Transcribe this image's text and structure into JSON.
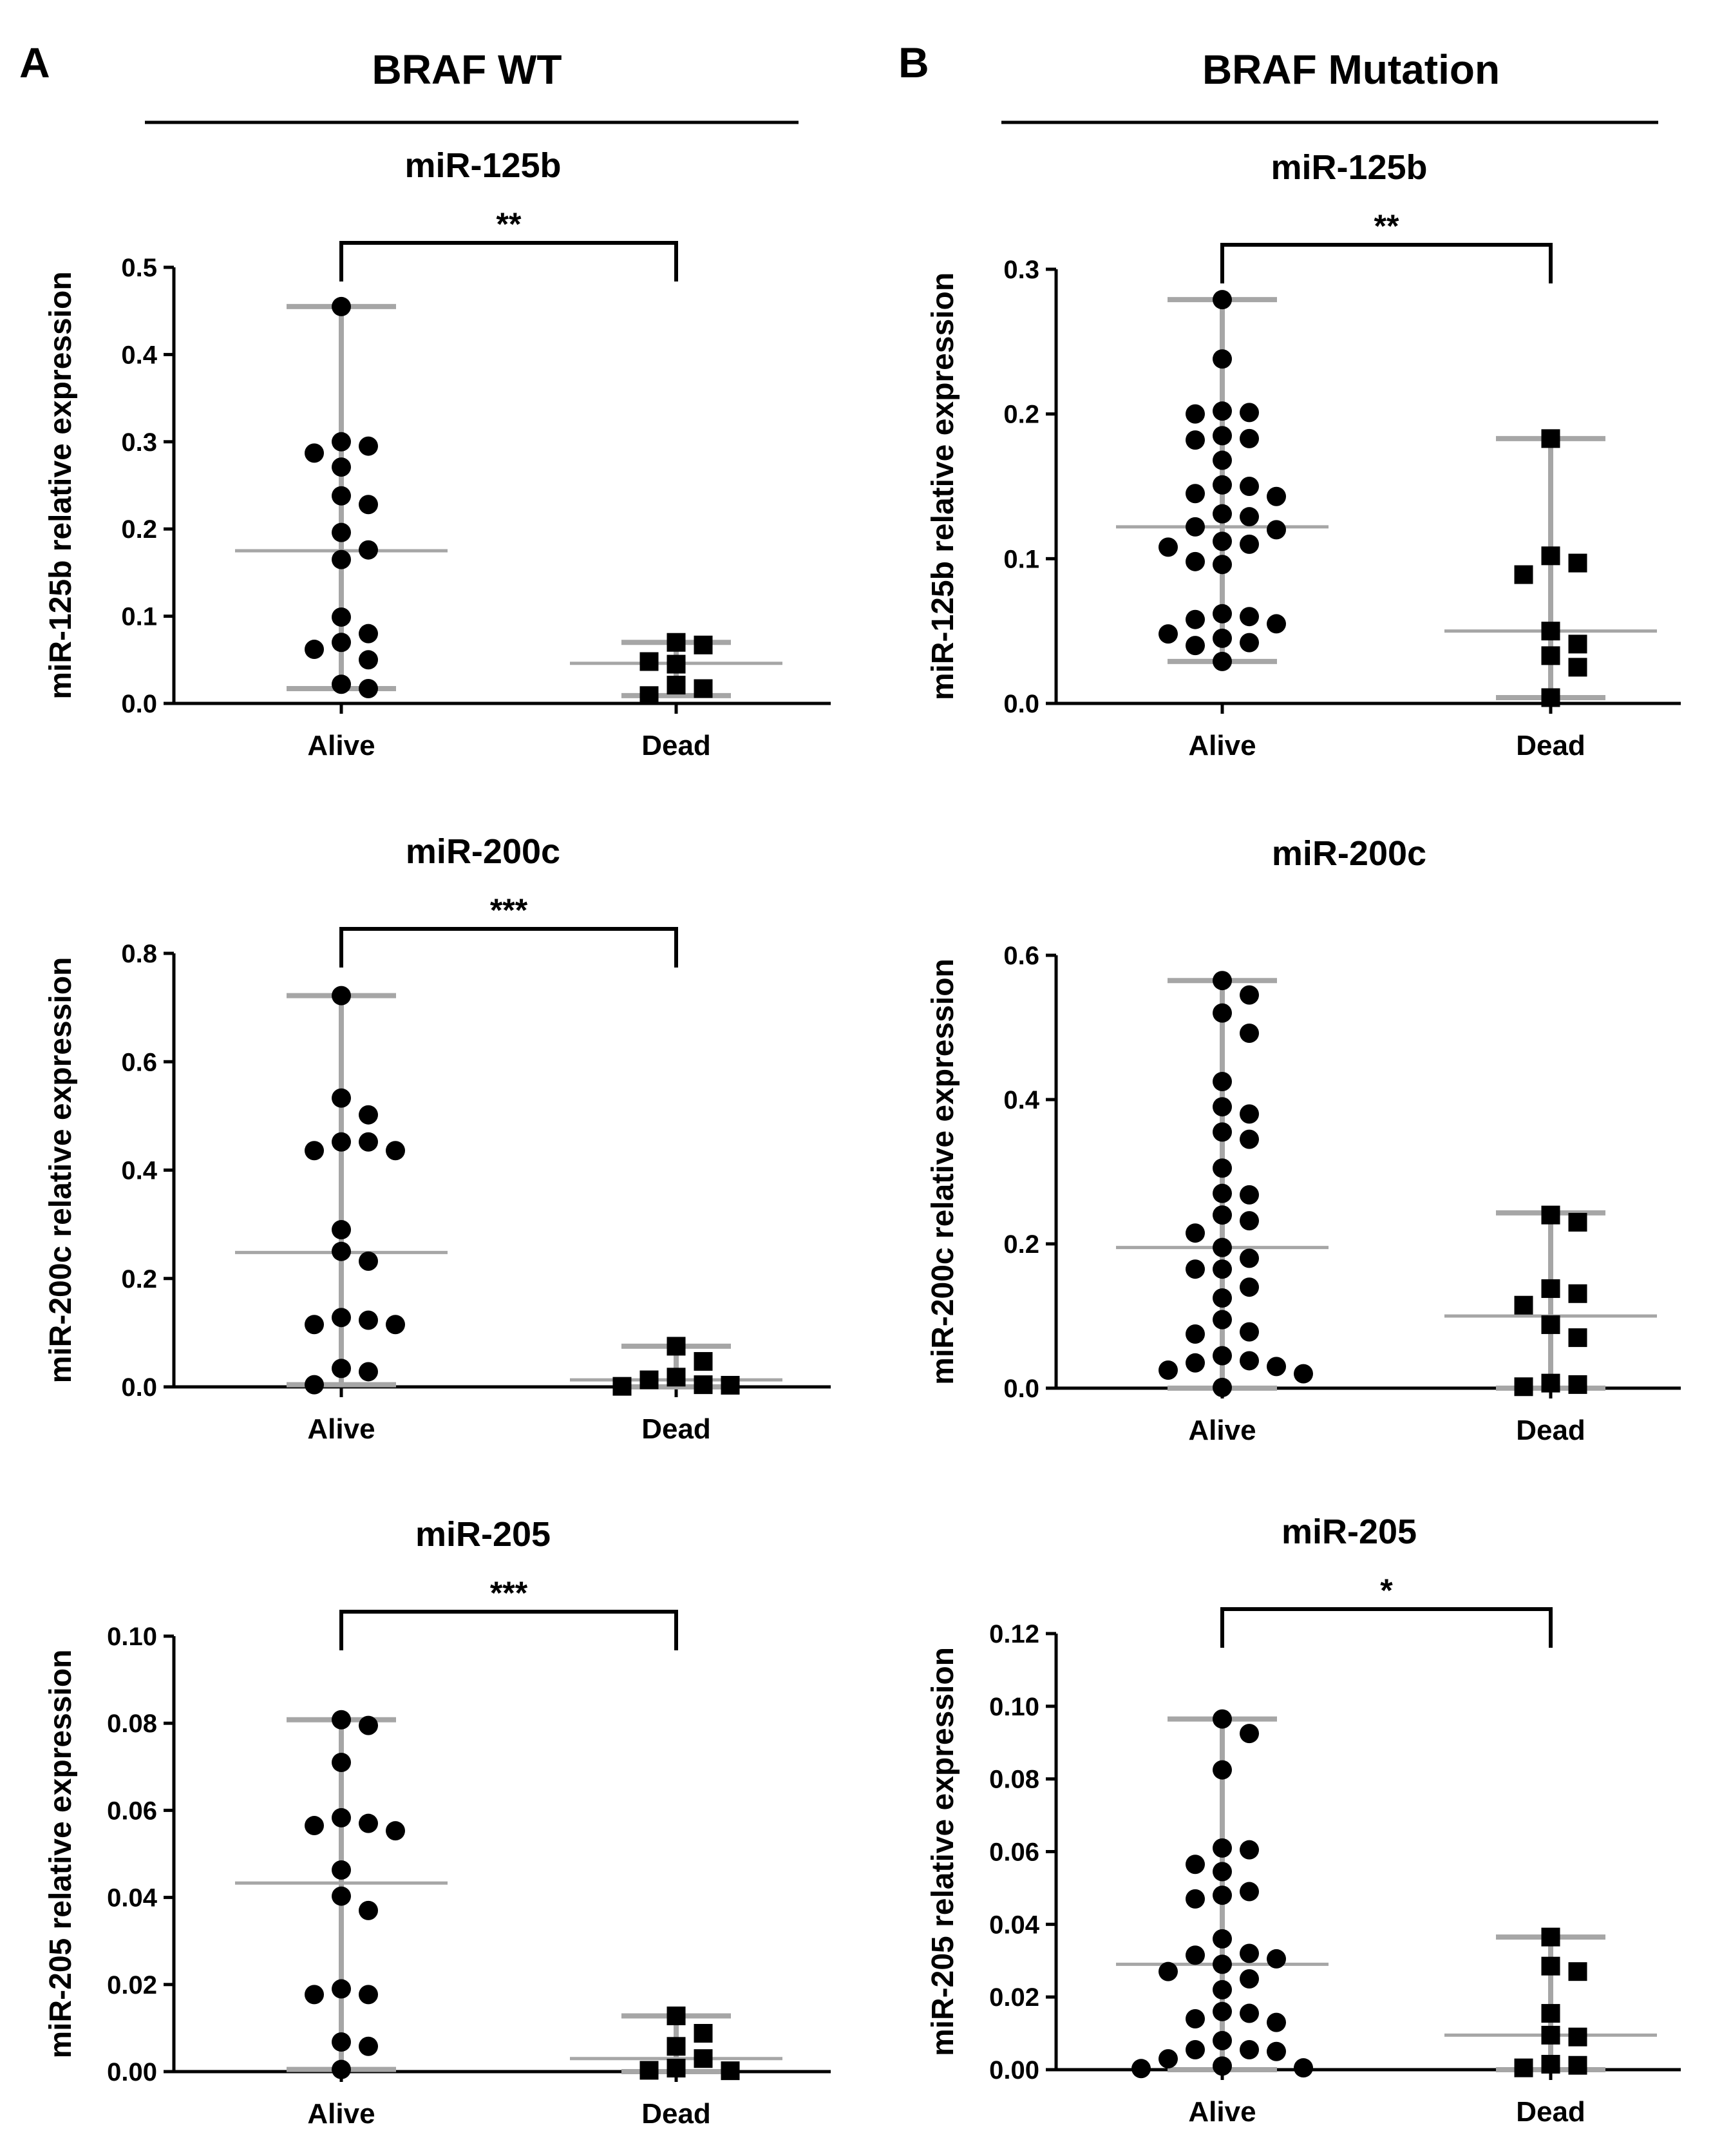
{
  "panels": [
    {
      "letter": "A",
      "title": "BRAF WT"
    },
    {
      "letter": "B",
      "title": "BRAF Mutation"
    }
  ],
  "colors": {
    "axis": "#000000",
    "whisker": "#a6a6a6",
    "point": "#000000",
    "background": "#ffffff"
  },
  "chart_data": [
    {
      "type": "scatter",
      "panel": "A",
      "title": "miR-125b",
      "ylabel": "miR-125b relative expression",
      "categories": [
        "Alive",
        "Dead"
      ],
      "ylim": [
        0,
        0.5
      ],
      "ticks": [
        "0.0",
        "0.1",
        "0.2",
        "0.3",
        "0.4",
        "0.5"
      ],
      "tick_values": [
        0,
        0.1,
        0.2,
        0.3,
        0.4,
        0.5
      ],
      "groups": [
        {
          "name": "Alive",
          "marker": "circle",
          "median": 0.175,
          "range": [
            0.017,
            0.455
          ],
          "values": [
            0.455,
            0.3,
            0.295,
            0.287,
            0.271,
            0.238,
            0.228,
            0.196,
            0.176,
            0.165,
            0.099,
            0.08,
            0.07,
            0.062,
            0.05,
            0.022,
            0.017
          ]
        },
        {
          "name": "Dead",
          "marker": "square",
          "median": 0.046,
          "range": [
            0.009,
            0.07
          ],
          "values": [
            0.07,
            0.067,
            0.048,
            0.045,
            0.021,
            0.017,
            0.009
          ]
        }
      ],
      "significance": "**"
    },
    {
      "type": "scatter",
      "panel": "A",
      "title": "miR-200c",
      "ylabel": "miR-200c relative expression",
      "categories": [
        "Alive",
        "Dead"
      ],
      "ylim": [
        0,
        0.8
      ],
      "ticks": [
        "0.0",
        "0.2",
        "0.4",
        "0.6",
        "0.8"
      ],
      "tick_values": [
        0,
        0.2,
        0.4,
        0.6,
        0.8
      ],
      "groups": [
        {
          "name": "Alive",
          "marker": "circle",
          "median": 0.248,
          "range": [
            0.004,
            0.722
          ],
          "values": [
            0.722,
            0.533,
            0.502,
            0.452,
            0.452,
            0.436,
            0.436,
            0.29,
            0.25,
            0.232,
            0.128,
            0.123,
            0.115,
            0.115,
            0.034,
            0.028,
            0.004
          ]
        },
        {
          "name": "Dead",
          "marker": "square",
          "median": 0.013,
          "range": [
            0.0,
            0.075
          ],
          "values": [
            0.075,
            0.047,
            0.018,
            0.013,
            0.004,
            0.003,
            0.001
          ]
        }
      ],
      "significance": "***"
    },
    {
      "type": "scatter",
      "panel": "A",
      "title": "miR-205",
      "ylabel": "miR-205 relative expression",
      "categories": [
        "Alive",
        "Dead"
      ],
      "ylim": [
        0,
        0.1
      ],
      "ticks": [
        "0.00",
        "0.02",
        "0.04",
        "0.06",
        "0.08",
        "0.10"
      ],
      "tick_values": [
        0,
        0.02,
        0.04,
        0.06,
        0.08,
        0.1
      ],
      "groups": [
        {
          "name": "Alive",
          "marker": "circle",
          "median": 0.0433,
          "range": [
            0.0005,
            0.0808
          ],
          "values": [
            0.0808,
            0.0795,
            0.071,
            0.0583,
            0.057,
            0.0565,
            0.0553,
            0.0463,
            0.0403,
            0.037,
            0.019,
            0.0177,
            0.0177,
            0.0068,
            0.0058,
            0.0005
          ]
        },
        {
          "name": "Dead",
          "marker": "square",
          "median": 0.003,
          "range": [
            0.0,
            0.0128
          ],
          "values": [
            0.0128,
            0.0088,
            0.0058,
            0.003,
            0.0008,
            0.0003,
            0.0002
          ]
        }
      ],
      "significance": "***"
    },
    {
      "type": "scatter",
      "panel": "B",
      "title": "miR-125b",
      "ylabel": "miR-125b relative expression",
      "categories": [
        "Alive",
        "Dead"
      ],
      "ylim": [
        0,
        0.3
      ],
      "ticks": [
        "0.0",
        "0.1",
        "0.2",
        "0.3"
      ],
      "tick_values": [
        0,
        0.1,
        0.2,
        0.3
      ],
      "groups": [
        {
          "name": "Alive",
          "marker": "circle",
          "median": 0.122,
          "range": [
            0.029,
            0.279
          ],
          "values": [
            0.279,
            0.238,
            0.202,
            0.201,
            0.2,
            0.185,
            0.183,
            0.182,
            0.168,
            0.151,
            0.15,
            0.145,
            0.143,
            0.131,
            0.129,
            0.122,
            0.12,
            0.112,
            0.11,
            0.108,
            0.098,
            0.096,
            0.062,
            0.06,
            0.058,
            0.055,
            0.048,
            0.045,
            0.042,
            0.04,
            0.029
          ]
        },
        {
          "name": "Dead",
          "marker": "square",
          "median": 0.05,
          "range": [
            0.004,
            0.183
          ],
          "values": [
            0.183,
            0.102,
            0.097,
            0.089,
            0.05,
            0.041,
            0.033,
            0.025,
            0.004
          ]
        }
      ],
      "significance": "**"
    },
    {
      "type": "scatter",
      "panel": "B",
      "title": "miR-200c",
      "ylabel": "miR-200c relative expression",
      "categories": [
        "Alive",
        "Dead"
      ],
      "ylim": [
        0,
        0.6
      ],
      "ticks": [
        "0.0",
        "0.2",
        "0.4",
        "0.6"
      ],
      "tick_values": [
        0,
        0.2,
        0.4,
        0.6
      ],
      "groups": [
        {
          "name": "Alive",
          "marker": "circle",
          "median": 0.195,
          "range": [
            0.0,
            0.565
          ],
          "values": [
            0.565,
            0.545,
            0.52,
            0.492,
            0.425,
            0.39,
            0.38,
            0.355,
            0.345,
            0.305,
            0.27,
            0.268,
            0.24,
            0.232,
            0.215,
            0.195,
            0.18,
            0.165,
            0.165,
            0.14,
            0.125,
            0.095,
            0.078,
            0.075,
            0.045,
            0.038,
            0.035,
            0.03,
            0.025,
            0.02,
            0.001
          ]
        },
        {
          "name": "Dead",
          "marker": "square",
          "median": 0.1,
          "range": [
            0.0,
            0.243
          ],
          "values": [
            0.24,
            0.23,
            0.138,
            0.131,
            0.115,
            0.088,
            0.07,
            0.007,
            0.005,
            0.002
          ]
        }
      ],
      "significance": ""
    },
    {
      "type": "scatter",
      "panel": "B",
      "title": "miR-205",
      "ylabel": "miR-205 relative expression",
      "categories": [
        "Alive",
        "Dead"
      ],
      "ylim": [
        0,
        0.12
      ],
      "ticks": [
        "0.00",
        "0.02",
        "0.04",
        "0.06",
        "0.08",
        "0.10",
        "0.12"
      ],
      "tick_values": [
        0,
        0.02,
        0.04,
        0.06,
        0.08,
        0.1,
        0.12
      ],
      "groups": [
        {
          "name": "Alive",
          "marker": "circle",
          "median": 0.029,
          "range": [
            0.0,
            0.0965
          ],
          "values": [
            0.0965,
            0.0925,
            0.0825,
            0.061,
            0.0605,
            0.0565,
            0.0545,
            0.049,
            0.048,
            0.047,
            0.036,
            0.032,
            0.0315,
            0.0305,
            0.029,
            0.027,
            0.025,
            0.022,
            0.016,
            0.0155,
            0.014,
            0.013,
            0.008,
            0.0055,
            0.0055,
            0.005,
            0.003,
            0.001,
            0.0005,
            0.0003
          ]
        },
        {
          "name": "Dead",
          "marker": "square",
          "median": 0.0095,
          "range": [
            0.0,
            0.0365
          ],
          "values": [
            0.0365,
            0.0285,
            0.027,
            0.0155,
            0.0095,
            0.009,
            0.0015,
            0.0012,
            0.0005
          ]
        }
      ],
      "significance": "*"
    }
  ]
}
